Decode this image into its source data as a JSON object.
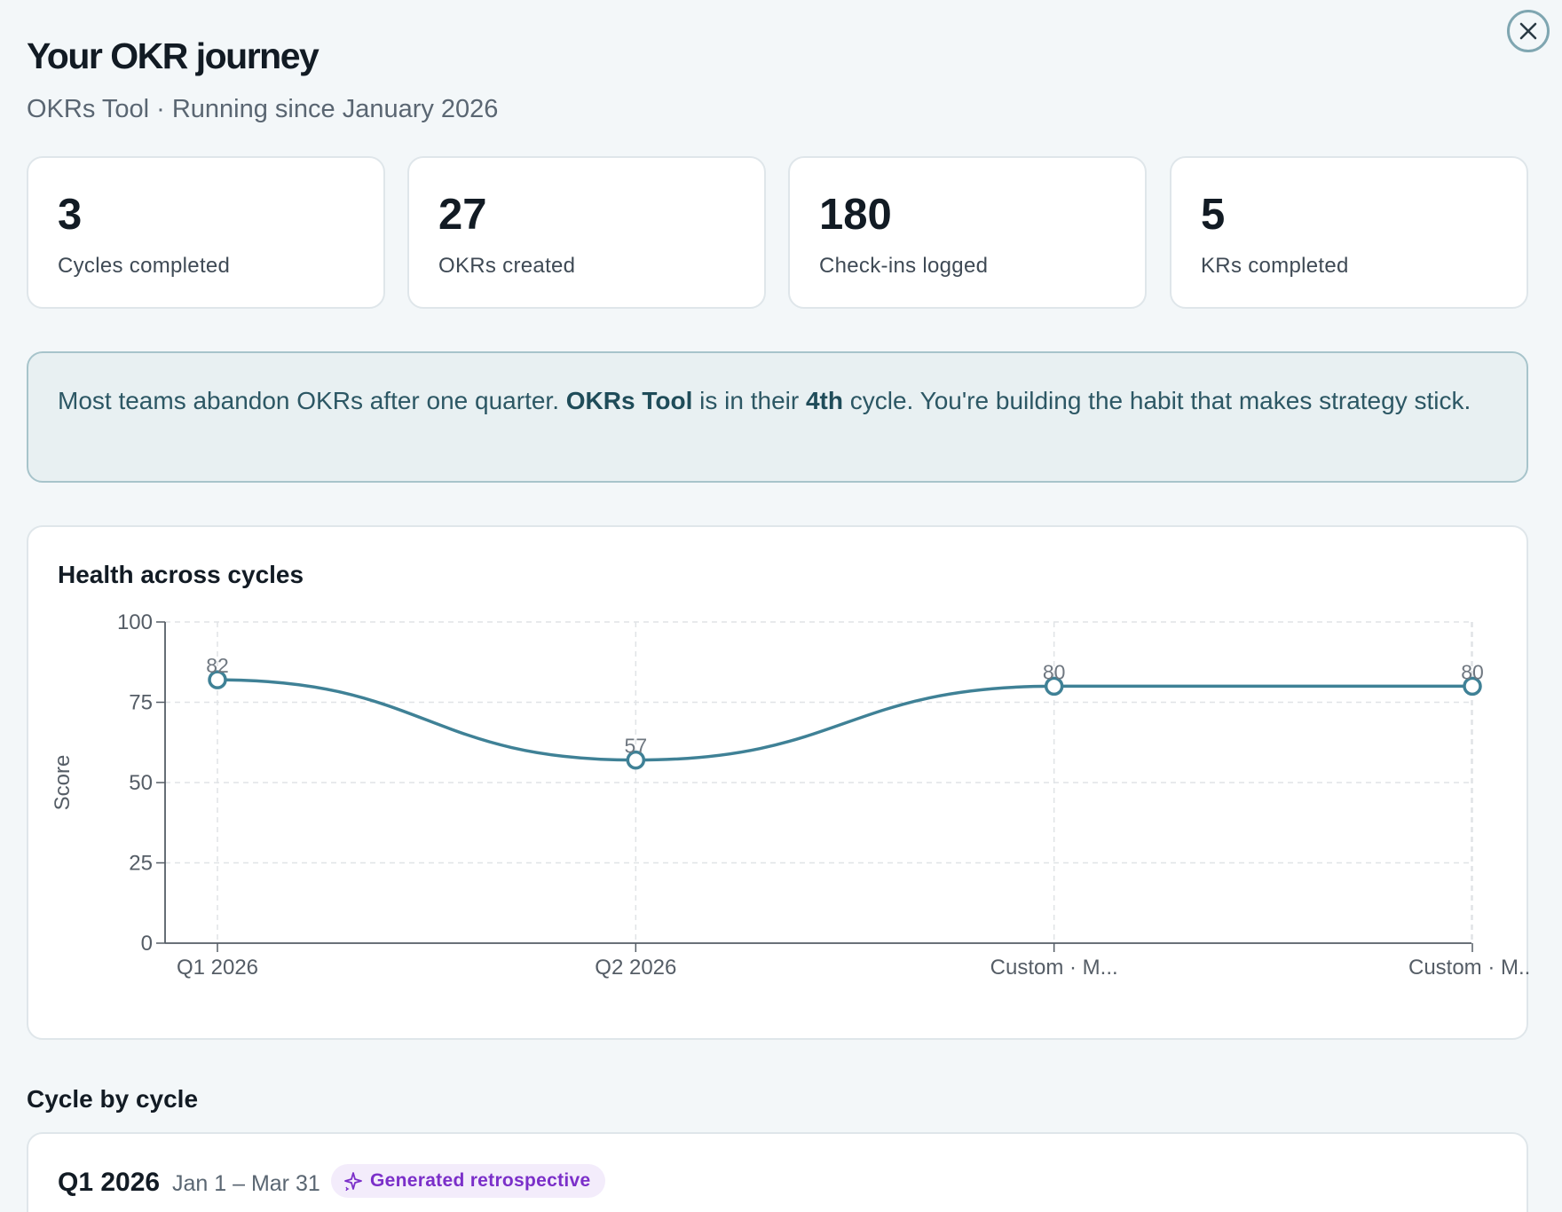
{
  "header": {
    "title": "Your OKR journey",
    "subtitle": "OKRs Tool · Running since January 2026"
  },
  "stats": [
    {
      "value": "3",
      "label": "Cycles completed"
    },
    {
      "value": "27",
      "label": "OKRs created"
    },
    {
      "value": "180",
      "label": "Check-ins logged"
    },
    {
      "value": "5",
      "label": "KRs completed"
    }
  ],
  "banner": {
    "text_1": "Most teams abandon OKRs after one quarter. ",
    "team": "OKRs Tool",
    "text_2": " is in their ",
    "cycle_ordinal": "4th",
    "text_3": " cycle. You're building the habit that makes strategy stick."
  },
  "chart": {
    "title": "Health across cycles"
  },
  "chart_data": {
    "type": "line",
    "title": "Health across cycles",
    "categories": [
      "Q1 2026",
      "Q2 2026",
      "Custom · M...",
      "Custom · M..."
    ],
    "series": [
      {
        "values": [
          82,
          57,
          80,
          80
        ]
      }
    ],
    "ylabel": "Score",
    "xlabel": "",
    "ylim": [
      0,
      100
    ],
    "yticks": [
      0,
      25,
      50,
      75,
      100
    ],
    "grid": true,
    "line_color": "#3f8196"
  },
  "cycles_section": {
    "title": "Cycle by cycle",
    "items": [
      {
        "name": "Q1 2026",
        "dates": "Jan 1 – Mar 31",
        "badge": "Generated retrospective"
      }
    ]
  },
  "colors": {
    "accent": "#3f8196",
    "badge": "#7b2fc9",
    "banner_bg": "#e8f0f2"
  }
}
